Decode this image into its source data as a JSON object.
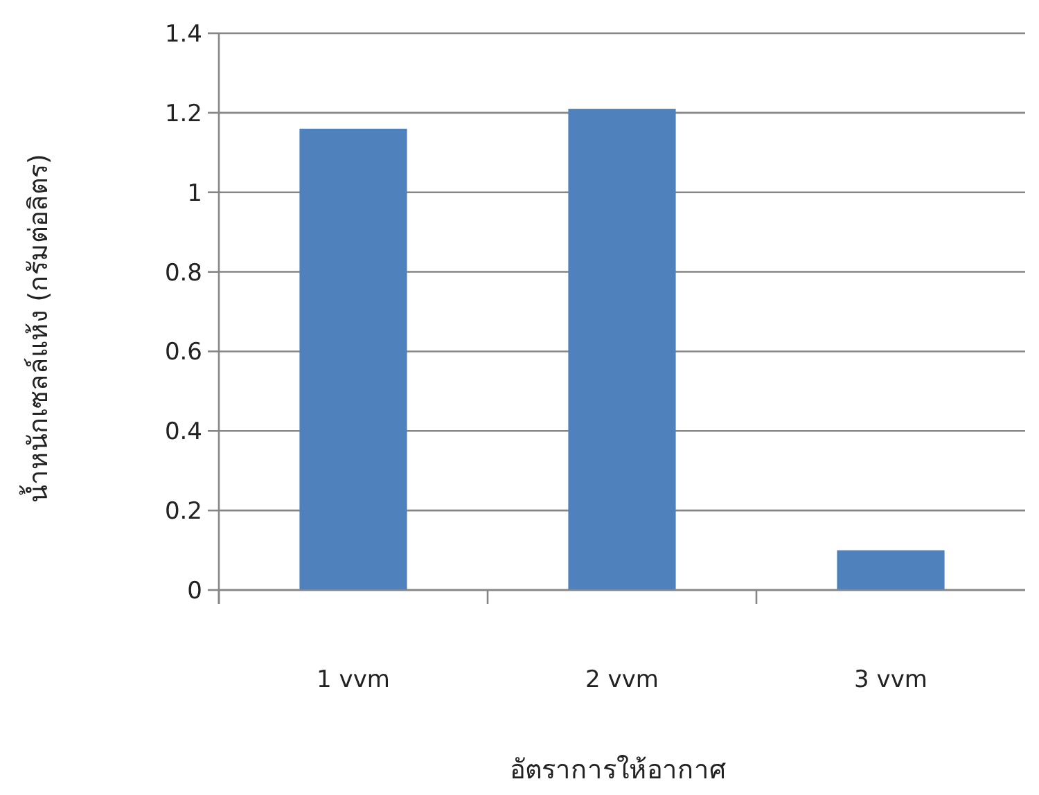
{
  "chart_data": {
    "type": "bar",
    "categories": [
      "1 vvm",
      "2 vvm",
      "3 vvm"
    ],
    "values": [
      1.16,
      1.21,
      0.1
    ],
    "color": "#4f81bd",
    "ylim": [
      0,
      1.4
    ],
    "yticks": [
      0,
      0.2,
      0.4,
      0.6,
      0.8,
      1,
      1.2,
      1.4
    ],
    "grid": "y",
    "xlabel": "อัตราการให้อากาศ",
    "ylabel": "น้ำหนักเซลล์แห้ง (กรัมต่อลิตร)"
  }
}
